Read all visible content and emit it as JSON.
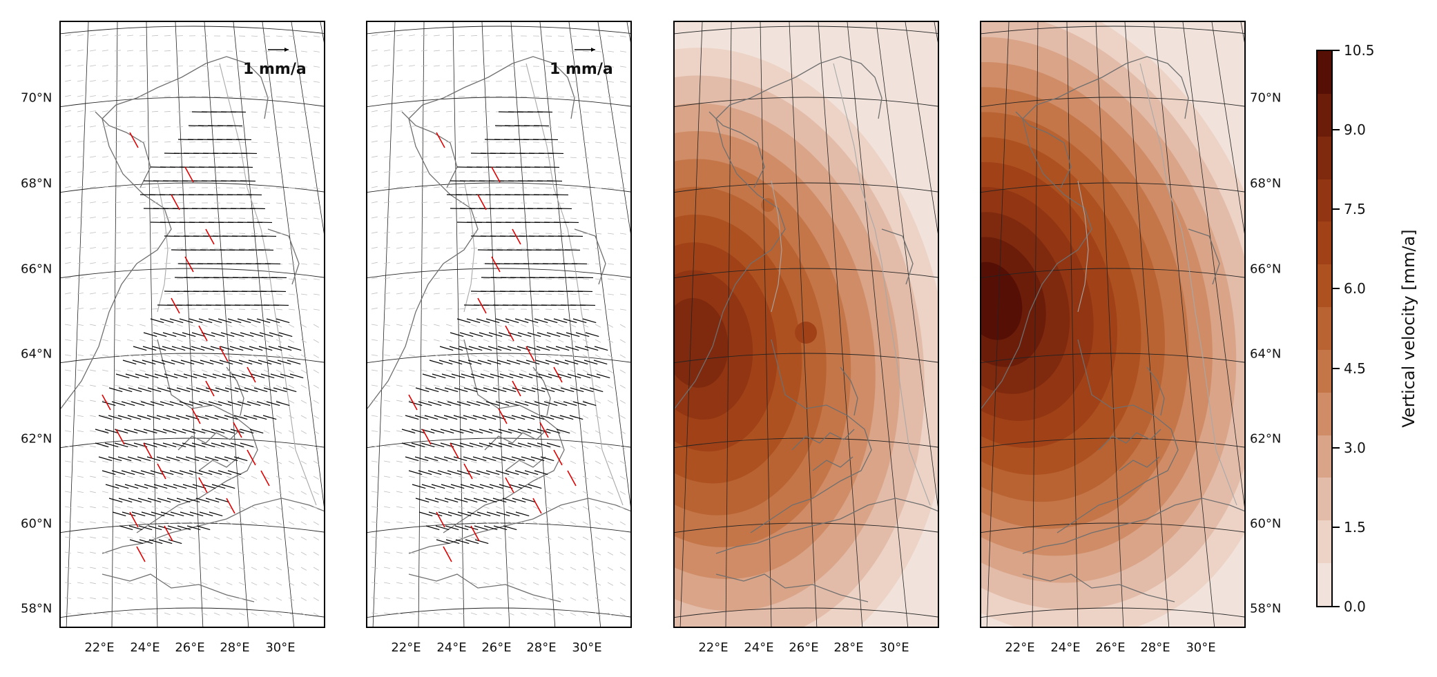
{
  "map": {
    "panels": [
      {
        "name": "horizontal-velocity-panel-1",
        "type": "vectors",
        "reference_arrow_label": "1 mm/a",
        "lat_labels_side": "left"
      },
      {
        "name": "horizontal-velocity-panel-2",
        "type": "vectors",
        "reference_arrow_label": "1 mm/a",
        "lat_labels_side": "none"
      },
      {
        "name": "vertical-velocity-panel-1",
        "type": "filled-contour",
        "lat_labels_side": "none"
      },
      {
        "name": "vertical-velocity-panel-2",
        "type": "filled-contour",
        "lat_labels_side": "right"
      }
    ],
    "latitude_labels": [
      "70°N",
      "68°N",
      "66°N",
      "64°N",
      "62°N",
      "60°N",
      "58°N"
    ],
    "longitude_labels": [
      "22°E",
      "24°E",
      "26°E",
      "28°E",
      "30°E"
    ],
    "vector_colors": {
      "observed": "#e00000",
      "model": "#000000",
      "background": "#bdbdbd"
    },
    "region": "Fennoscandia (Finland, northern Sweden/Norway)"
  },
  "colorbar": {
    "title": "Vertical velocity [mm/a]",
    "ticks": [
      "10.5",
      "9.0",
      "7.5",
      "6.0",
      "4.5",
      "3.0",
      "1.5",
      "0.0"
    ],
    "range": [
      0,
      10.5
    ],
    "colors": [
      "#f1e3db",
      "#ecd3c6",
      "#e3bca9",
      "#d9a487",
      "#cf8c66",
      "#c47649",
      "#b96332",
      "#ae5120",
      "#a04117",
      "#913512",
      "#7f2a0e",
      "#6b1d0a",
      "#550f05"
    ]
  }
}
